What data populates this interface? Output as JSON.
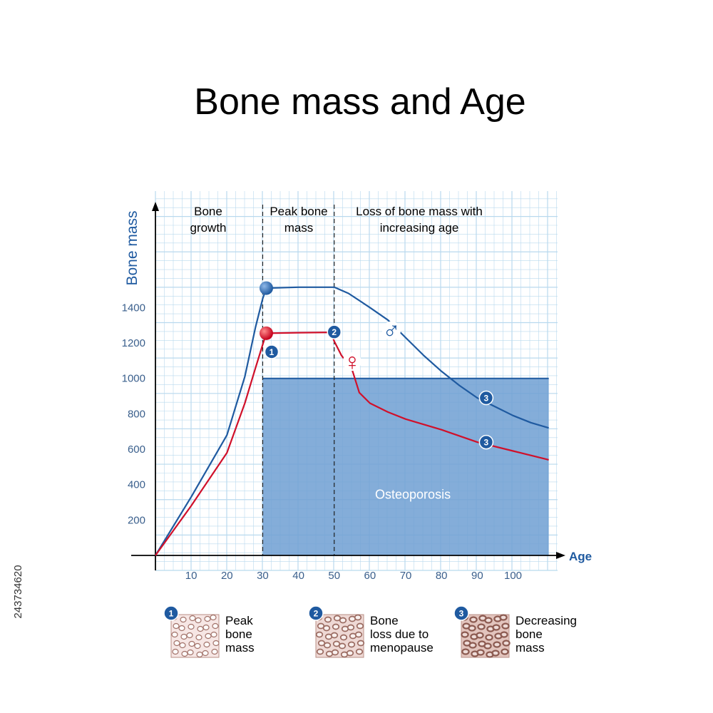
{
  "title": "Bone mass and Age",
  "stock_id": "243734620",
  "chart_data": {
    "type": "line",
    "xlabel": "Age",
    "ylabel": "Bone mass",
    "xlim": [
      0,
      110
    ],
    "ylim": [
      0,
      1600
    ],
    "x_ticks": [
      "10",
      "20",
      "30",
      "40",
      "50",
      "60",
      "70",
      "80",
      "90",
      "100"
    ],
    "y_ticks": [
      "200",
      "400",
      "600",
      "800",
      "1000",
      "1200",
      "1400"
    ],
    "grid": true,
    "phases": [
      {
        "name": "bone-growth",
        "line1": "Bone",
        "line2": "growth"
      },
      {
        "name": "peak-bone-mass",
        "line1": "Peak bone",
        "line2": "mass"
      },
      {
        "name": "loss-of-bone-mass",
        "line1": "Loss of bone mass with",
        "line2": "increasing age"
      }
    ],
    "phase_boundaries": [
      30,
      50
    ],
    "osteoporosis": {
      "label": "Osteoporosis",
      "x_from": 30,
      "x_to": 110,
      "y_from": 0,
      "y_to": 1000
    },
    "series": [
      {
        "key": "male",
        "color": "#1f5aa0",
        "symbol": "♂",
        "x": [
          0,
          10,
          20,
          25,
          28,
          30,
          31,
          40,
          50,
          54,
          60,
          65,
          70,
          75,
          80,
          85,
          90,
          95,
          100,
          105,
          110
        ],
        "y": [
          0,
          330,
          680,
          1010,
          1290,
          1450,
          1510,
          1515,
          1515,
          1480,
          1400,
          1330,
          1230,
          1130,
          1040,
          960,
          890,
          840,
          790,
          750,
          720
        ]
      },
      {
        "key": "female",
        "color": "#d0102a",
        "symbol": "♀",
        "x": [
          0,
          10,
          20,
          25,
          28,
          30,
          31,
          40,
          49,
          50,
          52,
          55,
          57,
          60,
          65,
          70,
          80,
          90,
          100,
          110
        ],
        "y": [
          0,
          280,
          580,
          860,
          1060,
          1190,
          1255,
          1258,
          1260,
          1210,
          1130,
          1050,
          920,
          860,
          810,
          770,
          710,
          640,
          590,
          540
        ]
      }
    ],
    "markers": [
      {
        "name": "male-peak-ball",
        "series": "male",
        "x": 31,
        "y": 1510
      },
      {
        "name": "female-peak-ball",
        "series": "female",
        "x": 31,
        "y": 1255
      }
    ],
    "badges": [
      {
        "num": "1",
        "x": 32.5,
        "y": 1150
      },
      {
        "num": "2",
        "x": 50,
        "y": 1262
      },
      {
        "num": "3",
        "x": 92.5,
        "y": 890
      },
      {
        "num": "3",
        "x": 92.5,
        "y": 640
      }
    ],
    "symbol_positions": [
      {
        "series": "male",
        "x": 66,
        "y": 1270
      },
      {
        "series": "female",
        "x": 55,
        "y": 1095
      }
    ]
  },
  "legend": [
    {
      "num": "1",
      "line1": "Peak",
      "line2": "bone",
      "line3": "mass",
      "tone": "#f6e6e4",
      "cell": "#a17168"
    },
    {
      "num": "2",
      "line1": "Bone",
      "line2": "loss due to",
      "line3": "menopause",
      "tone": "#eed8d4",
      "cell": "#9a6a60"
    },
    {
      "num": "3",
      "line1": "Decreasing",
      "line2": "bone",
      "line3": "mass",
      "tone": "#e2c4bd",
      "cell": "#8c5a50"
    }
  ],
  "colors": {
    "axis": "#000000",
    "grid": "#b9d9ee",
    "osteo_fill": "#6f9fd2",
    "osteo_border": "#1f5aa0",
    "badge": "#1f5aa0"
  }
}
